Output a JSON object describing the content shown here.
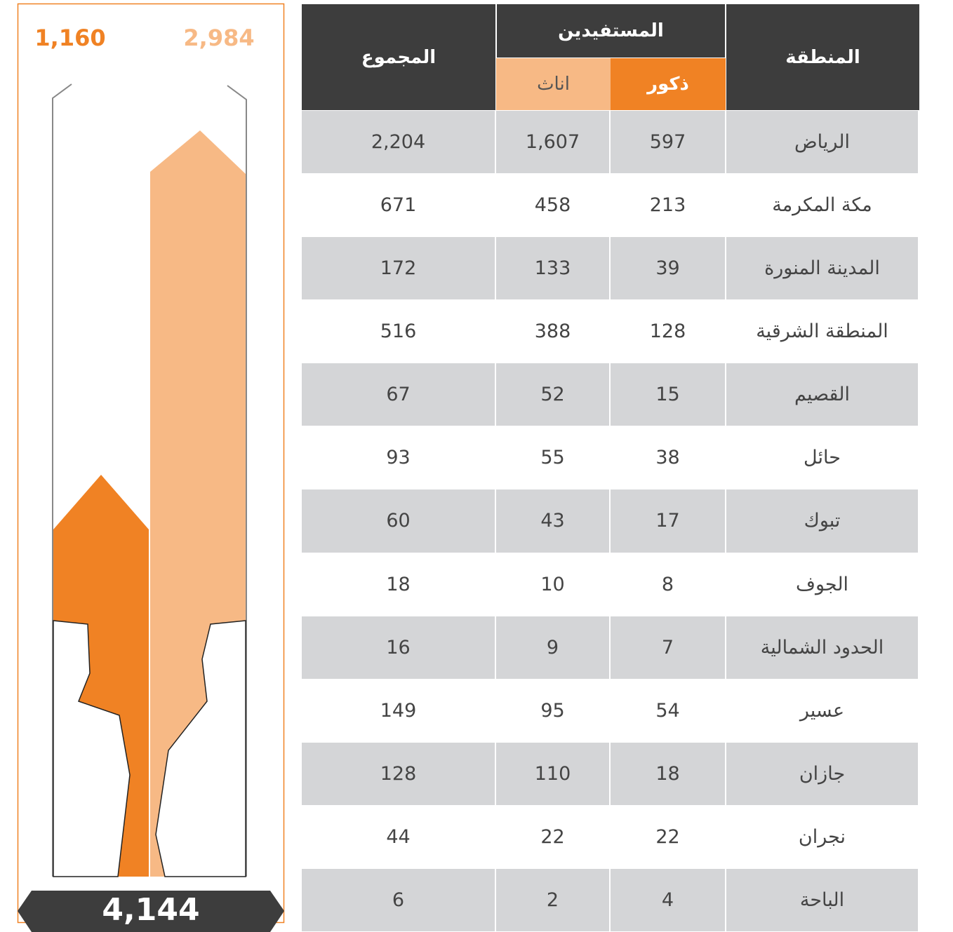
{
  "panel": {
    "male_total": "1,160",
    "female_total": "2,984",
    "grand_total": "4,144"
  },
  "table": {
    "headers": {
      "region": "المنطقة",
      "beneficiaries": "المستفيدين",
      "male": "ذكور",
      "female": "اناث",
      "total": "المجموع"
    },
    "rows": [
      [
        "الرياض",
        "597",
        "1,607",
        "2,204"
      ],
      [
        "مكة المكرمة",
        "213",
        "458",
        "671"
      ],
      [
        "المدينة المنورة",
        "39",
        "133",
        "172"
      ],
      [
        "المنطقة الشرقية",
        "128",
        "388",
        "516"
      ],
      [
        "القصيم",
        "15",
        "52",
        "67"
      ],
      [
        "حائل",
        "38",
        "55",
        "93"
      ],
      [
        "تبوك",
        "17",
        "43",
        "60"
      ],
      [
        "الجوف",
        "8",
        "10",
        "18"
      ],
      [
        "الحدود الشمالية",
        "7",
        "9",
        "16"
      ],
      [
        "عسير",
        "54",
        "95",
        "149"
      ],
      [
        "جازان",
        "18",
        "110",
        "128"
      ],
      [
        "نجران",
        "22",
        "22",
        "44"
      ],
      [
        "الباحة",
        "4",
        "2",
        "6"
      ]
    ]
  }
}
